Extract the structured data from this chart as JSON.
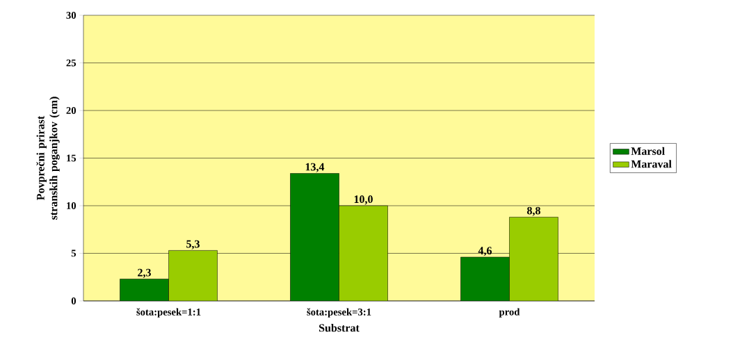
{
  "chart_data": {
    "type": "bar",
    "xlabel": "Substrat",
    "ylabel": "Povprečni prirast stranskih poganjkov (cm)",
    "categories": [
      "šota:pesek=1:1",
      "šota:pesek=3:1",
      "prod"
    ],
    "series": [
      {
        "name": "Marsol",
        "color": "#008000",
        "values": [
          2.3,
          13.4,
          4.6
        ],
        "value_labels": [
          "2,3",
          "13,4",
          "4,6"
        ]
      },
      {
        "name": "Maraval",
        "color": "#99cc00",
        "values": [
          5.3,
          10.0,
          8.8
        ],
        "value_labels": [
          "5,3",
          "10,0",
          "8,8"
        ]
      }
    ],
    "ylim": [
      0,
      30
    ],
    "yticks": [
      0,
      5,
      10,
      15,
      20,
      25,
      30
    ],
    "grid": "y",
    "legend": "right"
  }
}
